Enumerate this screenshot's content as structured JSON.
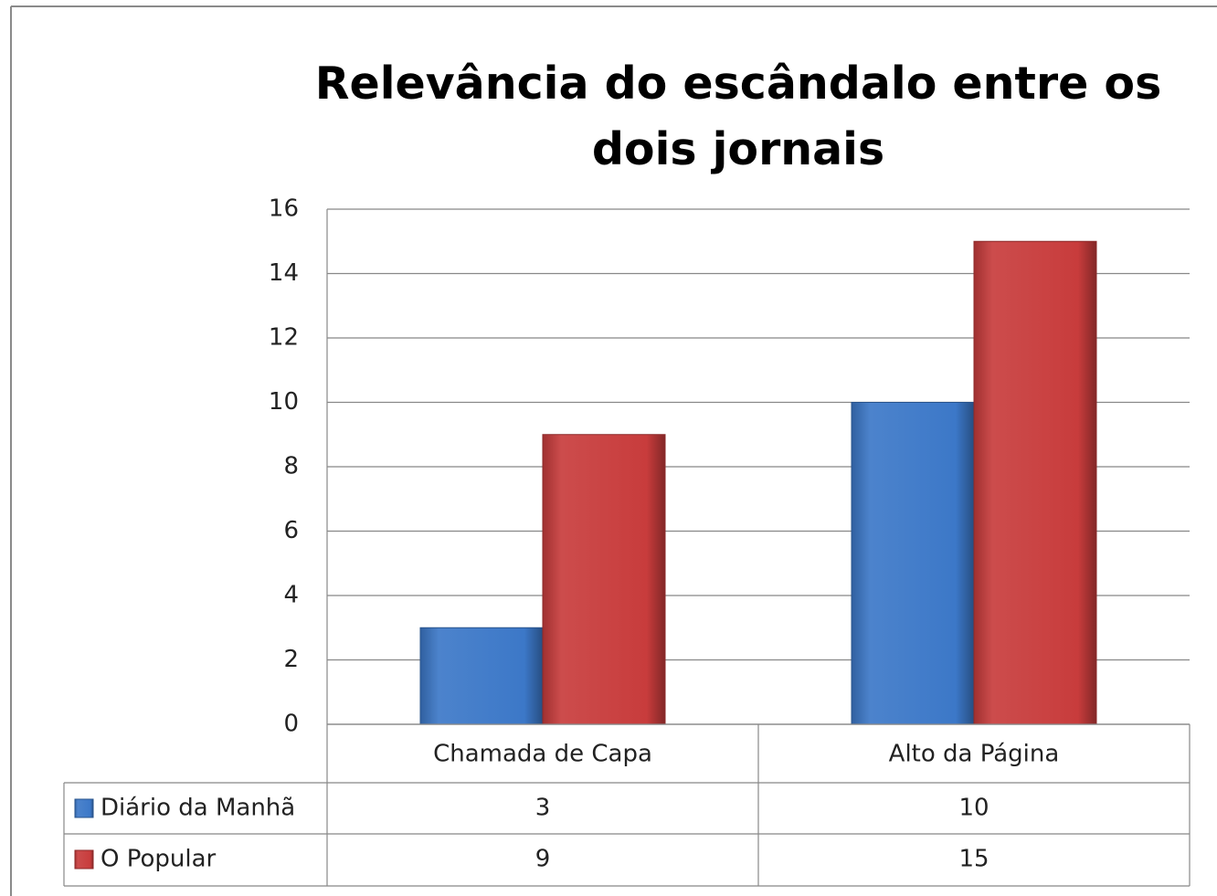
{
  "chart_data": {
    "type": "bar",
    "title": "Relevância do escândalo entre os dois jornais",
    "categories": [
      "Chamada de Capa",
      "Alto da Página"
    ],
    "series": [
      {
        "name": "Diário da Manhã",
        "color": "#3c78c8",
        "values": [
          3,
          10
        ]
      },
      {
        "name": "O Popular",
        "color": "#c83c3c",
        "values": [
          9,
          15
        ]
      }
    ],
    "ylim": [
      0,
      16
    ],
    "yticks": [
      0,
      2,
      4,
      6,
      8,
      10,
      12,
      14,
      16
    ],
    "grid": true
  }
}
